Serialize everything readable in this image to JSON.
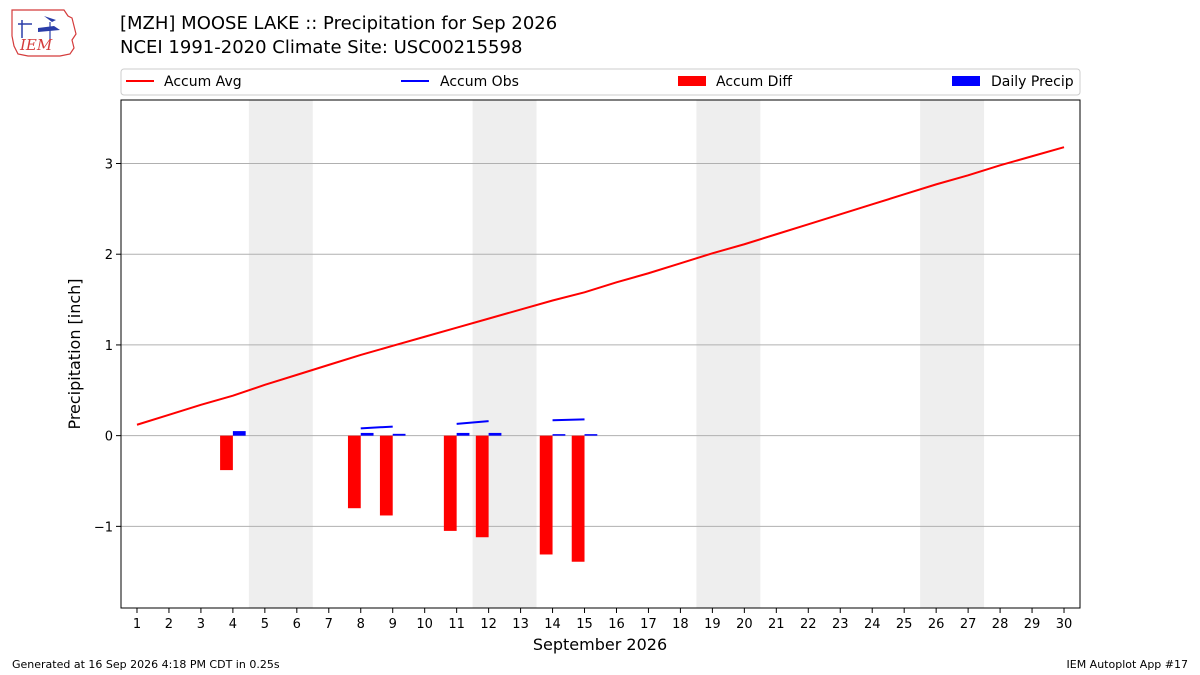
{
  "header": {
    "logo_text": "IEM",
    "title_line1": "[MZH] MOOSE LAKE :: Precipitation for Sep 2026",
    "title_line2": "NCEI 1991-2020 Climate Site: USC00215598"
  },
  "footer": {
    "left": "Generated at 16 Sep 2026 4:18 PM CDT in 0.25s",
    "right": "IEM Autoplot App #17"
  },
  "colors": {
    "avg": "#ff0000",
    "obs": "#0000ff",
    "diff": "#ff0000",
    "daily": "#0000ff",
    "weekend": "#eeeeee",
    "grid": "#b0b0b0"
  },
  "chart_data": {
    "type": "bar",
    "xlabel": "September 2026",
    "ylabel": "Precipitation [inch]",
    "xlim": [
      0.5,
      30.5
    ],
    "ylim": [
      -1.9,
      3.7
    ],
    "yticks": [
      -1,
      0,
      1,
      2,
      3
    ],
    "ytick_labels": [
      "−1",
      "0",
      "1",
      "2",
      "3"
    ],
    "xticks": [
      1,
      2,
      3,
      4,
      5,
      6,
      7,
      8,
      9,
      10,
      11,
      12,
      13,
      14,
      15,
      16,
      17,
      18,
      19,
      20,
      21,
      22,
      23,
      24,
      25,
      26,
      27,
      28,
      29,
      30
    ],
    "grid": "horizontal",
    "legend_position": "top",
    "weekend_spans": [
      [
        4.5,
        6.5
      ],
      [
        11.5,
        13.5
      ],
      [
        18.5,
        20.5
      ],
      [
        25.5,
        27.5
      ]
    ],
    "series": [
      {
        "name": "Accum Avg",
        "kind": "line",
        "x": [
          1,
          2,
          3,
          4,
          5,
          6,
          7,
          8,
          9,
          10,
          11,
          12,
          13,
          14,
          15,
          16,
          17,
          18,
          19,
          20,
          21,
          22,
          23,
          24,
          25,
          26,
          27,
          28,
          29,
          30
        ],
        "values": [
          0.12,
          0.23,
          0.34,
          0.44,
          0.56,
          0.67,
          0.78,
          0.89,
          0.99,
          1.09,
          1.19,
          1.29,
          1.39,
          1.49,
          1.58,
          1.69,
          1.79,
          1.9,
          2.01,
          2.11,
          2.22,
          2.33,
          2.44,
          2.55,
          2.66,
          2.77,
          2.87,
          2.98,
          3.08,
          3.18
        ]
      },
      {
        "name": "Accum Obs",
        "kind": "line",
        "segments": [
          {
            "x": [
              8,
              9
            ],
            "values": [
              0.08,
              0.1
            ]
          },
          {
            "x": [
              11,
              12
            ],
            "values": [
              0.13,
              0.16
            ]
          },
          {
            "x": [
              14,
              15
            ],
            "values": [
              0.17,
              0.18
            ]
          }
        ]
      },
      {
        "name": "Accum Diff",
        "kind": "bar",
        "x": [
          4,
          8,
          9,
          11,
          12,
          14,
          15
        ],
        "values": [
          -0.38,
          -0.8,
          -0.88,
          -1.05,
          -1.12,
          -1.31,
          -1.39
        ]
      },
      {
        "name": "Daily Precip",
        "kind": "bar",
        "x": [
          4,
          8,
          9,
          11,
          12,
          14,
          15
        ],
        "values": [
          0.05,
          0.03,
          0.02,
          0.03,
          0.03,
          0.01,
          0.01
        ]
      }
    ]
  }
}
